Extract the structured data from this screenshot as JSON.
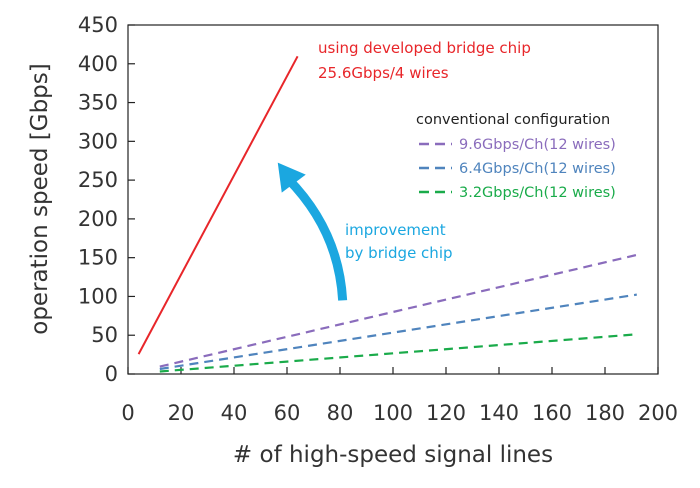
{
  "chart_data": {
    "type": "line",
    "xlabel": "# of high-speed signal lines",
    "ylabel": "operation speed [Gbps]",
    "xlim": [
      0,
      200
    ],
    "ylim": [
      0,
      450
    ],
    "xticks": [
      0,
      20,
      40,
      60,
      80,
      100,
      120,
      140,
      160,
      180,
      200
    ],
    "yticks": [
      0,
      50,
      100,
      150,
      200,
      250,
      300,
      350,
      400,
      450
    ],
    "grid": false,
    "legend": {
      "title": "conventional configuration",
      "position": "right"
    },
    "series": [
      {
        "name": "using developed bridge chip",
        "label_line2": "25.6Gbps/4 wires",
        "color": "#e8262a",
        "dash": "solid",
        "x": [
          4,
          64
        ],
        "y": [
          25.6,
          409.6
        ]
      },
      {
        "name": "9.6Gbps/Ch(12 wires)",
        "color": "#8a6cbc",
        "dash": "dashed",
        "x": [
          12,
          192
        ],
        "y": [
          9.6,
          153.6
        ]
      },
      {
        "name": "6.4Gbps/Ch(12 wires)",
        "color": "#4f84bd",
        "dash": "dashed",
        "x": [
          12,
          192
        ],
        "y": [
          6.4,
          102.4
        ]
      },
      {
        "name": "3.2Gbps/Ch(12 wires)",
        "color": "#1aab4a",
        "dash": "dashed",
        "x": [
          12,
          192
        ],
        "y": [
          3.2,
          51.2
        ]
      }
    ],
    "annotations": [
      {
        "line1": "improvement",
        "line2": "by bridge chip",
        "color": "#1ba7e0",
        "arrow_from": [
          81,
          95
        ],
        "arrow_to": [
          55,
          270
        ]
      }
    ]
  }
}
